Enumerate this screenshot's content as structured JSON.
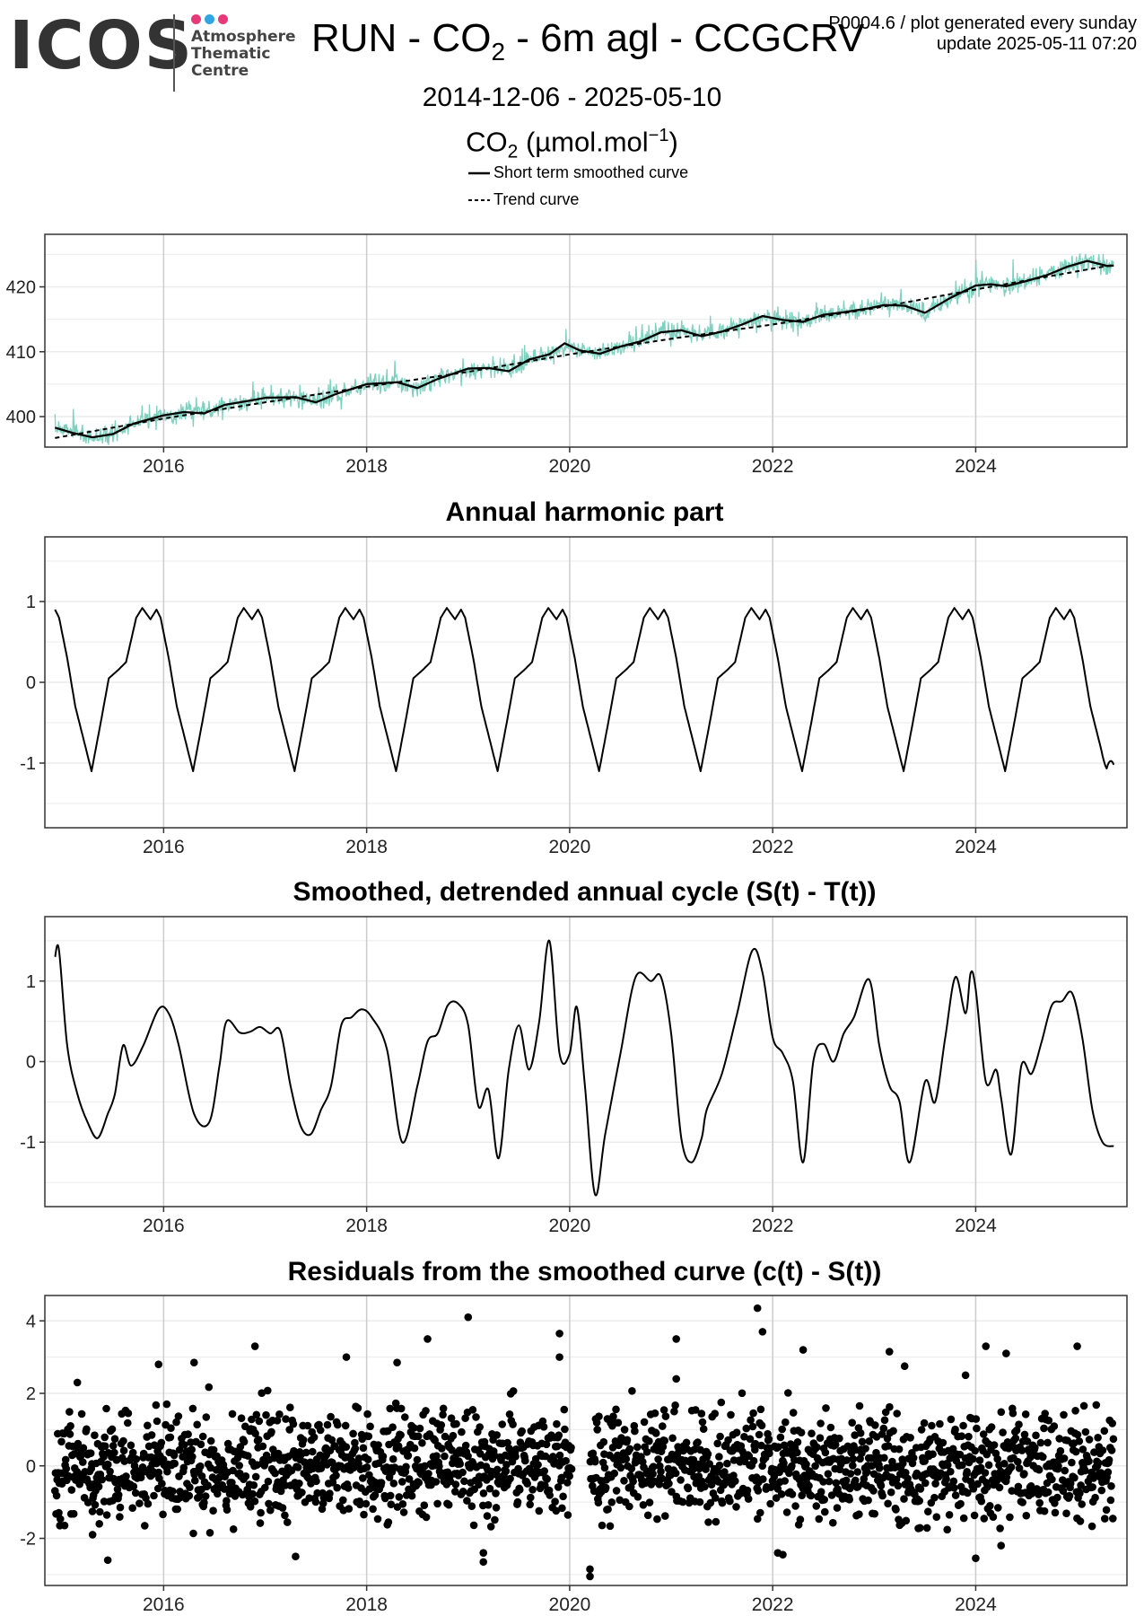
{
  "logo": {
    "wordmark": "ICOS",
    "lines": [
      "Atmosphere",
      "Thematic",
      "Centre"
    ],
    "dot_colors": [
      "#e6397a",
      "#2fa6e3",
      "#e6397a"
    ]
  },
  "header": {
    "title_pre": "RUN - CO",
    "title_sub": "2",
    "title_post": " - 6m agl - CCGCRV",
    "code_line": "P0004.6 / plot generated every sunday",
    "update_line": "update  2025-05-11 07:20",
    "date_range": "2014-12-06 - 2025-05-10",
    "ylabel_pre": "CO",
    "ylabel_sub": "2",
    "ylabel_mid": " (µmol.mol",
    "ylabel_sup": "−1",
    "ylabel_post": ")"
  },
  "legend": {
    "short_term": "Short term smoothed curve",
    "trend": "Trend curve"
  },
  "colors": {
    "observations": "#7fd1bf",
    "curve": "#000000",
    "grid": "#cccccc",
    "grid_minor": "#ebebeb"
  },
  "chart_data": [
    {
      "type": "line",
      "title": "",
      "ylabel": "",
      "x_ticks": [
        "2016",
        "2018",
        "2020",
        "2022",
        "2024"
      ],
      "y_ticks": [
        400,
        410,
        420
      ],
      "ylim": [
        395.3,
        428.1
      ],
      "xlim": [
        2014.83,
        2025.49
      ],
      "grid": true,
      "series": [
        {
          "name": "Short term smoothed curve",
          "x": [
            2014.93,
            2015.1,
            2015.3,
            2015.5,
            2015.7,
            2016.0,
            2016.2,
            2016.4,
            2016.6,
            2016.9,
            2017.0,
            2017.3,
            2017.5,
            2017.7,
            2018.0,
            2018.3,
            2018.5,
            2018.7,
            2019.0,
            2019.2,
            2019.4,
            2019.6,
            2019.8,
            2019.95,
            2020.1,
            2020.3,
            2020.5,
            2020.7,
            2020.9,
            2021.1,
            2021.3,
            2021.5,
            2021.7,
            2021.9,
            2022.1,
            2022.3,
            2022.5,
            2022.7,
            2022.95,
            2023.1,
            2023.3,
            2023.5,
            2023.75,
            2024.0,
            2024.15,
            2024.3,
            2024.5,
            2024.7,
            2024.9,
            2025.1,
            2025.3,
            2025.36
          ],
          "values": [
            398.3,
            397.5,
            396.8,
            397.3,
            398.9,
            400.2,
            400.7,
            400.5,
            401.8,
            402.6,
            402.9,
            403.0,
            402.2,
            403.5,
            405.0,
            405.3,
            404.4,
            405.8,
            407.4,
            407.5,
            407.0,
            408.8,
            409.6,
            411.3,
            410.2,
            409.7,
            410.8,
            411.6,
            413.0,
            413.3,
            412.4,
            413.1,
            414.2,
            415.5,
            414.9,
            414.6,
            415.7,
            416.1,
            416.7,
            417.2,
            417.1,
            416.0,
            418.3,
            420.2,
            420.4,
            420.1,
            420.9,
            421.8,
            423.1,
            424.0,
            423.2,
            423.3
          ]
        },
        {
          "name": "Trend curve",
          "x": [
            2014.93,
            2016.0,
            2017.0,
            2018.0,
            2019.0,
            2020.0,
            2021.0,
            2022.0,
            2023.0,
            2024.0,
            2025.36
          ],
          "values": [
            396.7,
            399.7,
            402.2,
            404.6,
            406.9,
            409.6,
            412.0,
            414.2,
            416.7,
            419.6,
            423.4
          ]
        }
      ]
    },
    {
      "type": "line",
      "title": "Annual harmonic part",
      "x_ticks": [
        "2016",
        "2018",
        "2020",
        "2022",
        "2024"
      ],
      "y_ticks": [
        -1,
        0,
        1
      ],
      "ylim": [
        -1.8,
        1.8
      ],
      "xlim": [
        2014.83,
        2025.49
      ],
      "grid": true,
      "series": [
        {
          "name": "",
          "annual_profile": {
            "phase": [
              0,
              0.04,
              0.12,
              0.2,
              0.3,
              0.36,
              0.45,
              0.53,
              0.62,
              0.7,
              0.8,
              0.86,
              0.94,
              1.0
            ],
            "values": [
              0.9,
              0.8,
              0.3,
              -0.3,
              -0.8,
              -1.1,
              -0.5,
              0.05,
              0.15,
              0.25,
              0.8,
              0.92,
              0.78,
              0.9
            ]
          },
          "x_start": 2014.93,
          "x_end": 2025.36,
          "end_value": -1.02
        }
      ]
    },
    {
      "type": "line",
      "title": "Smoothed, detrended annual cycle (S(t) - T(t))",
      "x_ticks": [
        "2016",
        "2018",
        "2020",
        "2022",
        "2024"
      ],
      "y_ticks": [
        -1,
        0,
        1
      ],
      "ylim": [
        -1.8,
        1.8
      ],
      "xlim": [
        2014.83,
        2025.49
      ],
      "grid": true,
      "series": [
        {
          "name": "",
          "x": [
            2014.93,
            2014.97,
            2015.05,
            2015.15,
            2015.25,
            2015.35,
            2015.45,
            2015.52,
            2015.6,
            2015.68,
            2015.8,
            2015.95,
            2016.05,
            2016.15,
            2016.3,
            2016.45,
            2016.55,
            2016.62,
            2016.75,
            2016.85,
            2016.95,
            2017.05,
            2017.15,
            2017.25,
            2017.35,
            2017.45,
            2017.55,
            2017.65,
            2017.75,
            2017.85,
            2017.95,
            2018.05,
            2018.2,
            2018.35,
            2018.5,
            2018.6,
            2018.7,
            2018.8,
            2018.9,
            2019.0,
            2019.1,
            2019.2,
            2019.3,
            2019.4,
            2019.5,
            2019.6,
            2019.7,
            2019.8,
            2019.9,
            2020.0,
            2020.07,
            2020.15,
            2020.25,
            2020.35,
            2020.5,
            2020.65,
            2020.8,
            2020.9,
            2021.0,
            2021.1,
            2021.2,
            2021.3,
            2021.35,
            2021.5,
            2021.65,
            2021.8,
            2021.9,
            2022.0,
            2022.1,
            2022.2,
            2022.3,
            2022.4,
            2022.5,
            2022.6,
            2022.7,
            2022.8,
            2022.95,
            2023.05,
            2023.15,
            2023.25,
            2023.35,
            2023.5,
            2023.6,
            2023.7,
            2023.8,
            2023.9,
            2023.95,
            2024.0,
            2024.1,
            2024.2,
            2024.25,
            2024.35,
            2024.45,
            2024.55,
            2024.65,
            2024.75,
            2024.85,
            2024.95,
            2025.05,
            2025.15,
            2025.25,
            2025.36
          ],
          "values": [
            1.3,
            1.38,
            0.2,
            -0.4,
            -0.75,
            -0.95,
            -0.65,
            -0.4,
            0.2,
            -0.05,
            0.2,
            0.65,
            0.6,
            0.2,
            -0.65,
            -0.75,
            -0.05,
            0.5,
            0.36,
            0.37,
            0.43,
            0.35,
            0.38,
            -0.3,
            -0.8,
            -0.9,
            -0.6,
            -0.3,
            0.45,
            0.55,
            0.65,
            0.55,
            0.15,
            -1.0,
            -0.3,
            0.25,
            0.35,
            0.7,
            0.72,
            0.45,
            -0.55,
            -0.35,
            -1.2,
            -0.1,
            0.45,
            -0.1,
            0.5,
            1.5,
            0.1,
            0.1,
            0.68,
            -0.3,
            -1.65,
            -0.9,
            0.1,
            1.05,
            1.0,
            1.05,
            0.35,
            -0.95,
            -1.25,
            -0.95,
            -0.6,
            -0.15,
            0.6,
            1.38,
            1.1,
            0.3,
            0.1,
            -0.25,
            -1.25,
            0.0,
            0.22,
            0.0,
            0.35,
            0.55,
            1.02,
            0.2,
            -0.3,
            -0.5,
            -1.25,
            -0.25,
            -0.5,
            0.3,
            1.05,
            0.6,
            1.1,
            0.9,
            -0.25,
            -0.1,
            -0.45,
            -1.15,
            -0.05,
            -0.15,
            0.25,
            0.7,
            0.75,
            0.85,
            0.3,
            -0.6,
            -1.0,
            -1.05
          ]
        }
      ]
    },
    {
      "type": "scatter",
      "title": "Residuals from the smoothed curve (c(t) - S(t))",
      "x_ticks": [
        "2016",
        "2018",
        "2020",
        "2022",
        "2024"
      ],
      "y_ticks": [
        -2,
        0,
        2,
        4
      ],
      "ylim": [
        -3.3,
        4.7
      ],
      "xlim": [
        2014.83,
        2025.49
      ],
      "grid": true,
      "series": [
        {
          "name": "",
          "notable_points": {
            "x": [
              2015.45,
              2015.95,
              2016.3,
              2016.9,
              2017.3,
              2018.6,
              2019.0,
              2019.15,
              2019.15,
              2019.9,
              2019.9,
              2020.2,
              2020.2,
              2021.05,
              2021.05,
              2021.85,
              2021.9,
              2022.3,
              2022.05,
              2023.15,
              2023.3,
              2023.9,
              2024.1,
              2024.3,
              2024.25,
              2025.0,
              2024.0,
              2015.15,
              2015.3,
              2017.8,
              2018.3,
              2022.1
            ],
            "values": [
              -2.6,
              2.8,
              2.85,
              3.3,
              -2.5,
              3.5,
              4.1,
              -2.4,
              -2.65,
              3.65,
              3.0,
              -2.85,
              -3.05,
              3.5,
              2.4,
              4.35,
              3.7,
              3.2,
              -2.4,
              3.15,
              2.75,
              2.5,
              3.3,
              3.1,
              -2.2,
              3.3,
              -2.55,
              2.3,
              -1.9,
              3.0,
              2.85,
              -2.45
            ]
          },
          "bulk_points": "≈1950 daily residuals, mostly within -1.5…2"
        }
      ]
    }
  ]
}
